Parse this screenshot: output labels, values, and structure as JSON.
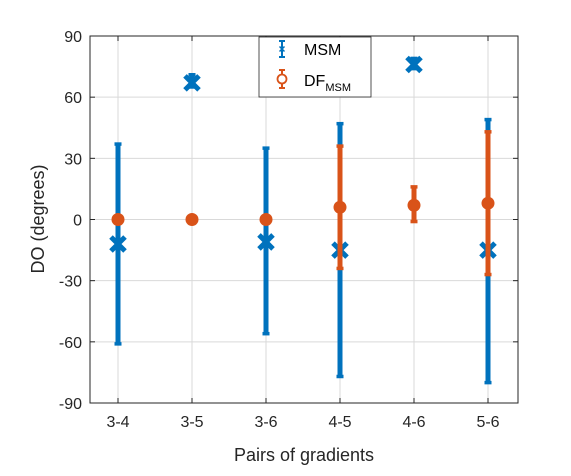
{
  "chart_data": {
    "type": "errorbar",
    "xlabel": "Pairs of gradients",
    "ylabel": "DO (degrees)",
    "ylim": [
      -90,
      90
    ],
    "yticks": [
      -90,
      -60,
      -30,
      0,
      30,
      60,
      90
    ],
    "categories": [
      "3-4",
      "3-5",
      "3-6",
      "4-5",
      "4-6",
      "5-6"
    ],
    "grid": true,
    "legend_position": "top-center",
    "series": [
      {
        "name": "MSM",
        "marker": "x",
        "color": "#0072BD",
        "values": [
          -12,
          67,
          -11,
          -15,
          76,
          -15
        ],
        "lower": [
          -61,
          65,
          -56,
          -77,
          74,
          -80
        ],
        "upper": [
          37,
          71,
          35,
          47,
          79,
          49
        ]
      },
      {
        "name": "DF",
        "name_subscript": "MSM",
        "marker": "o",
        "color": "#D95319",
        "values": [
          0,
          0,
          0,
          6,
          7,
          8
        ],
        "lower": [
          null,
          null,
          null,
          -24,
          -1,
          -27
        ],
        "upper": [
          null,
          null,
          null,
          36,
          16,
          43
        ]
      }
    ]
  }
}
